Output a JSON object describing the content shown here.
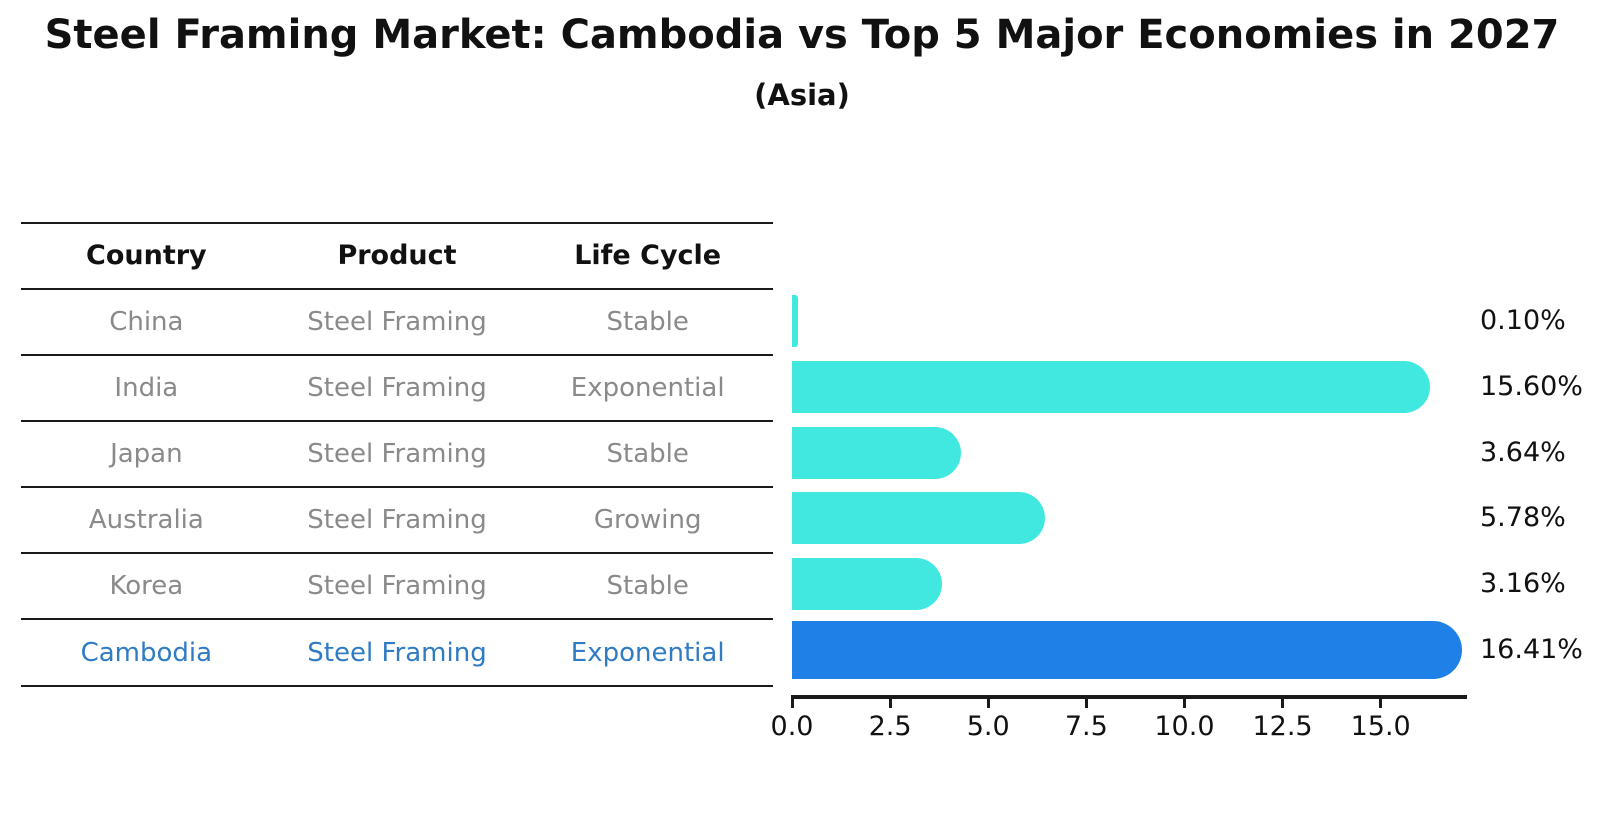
{
  "title": "Steel Framing Market: Cambodia vs Top 5 Major Economies in 2027",
  "subtitle": "(Asia)",
  "colors": {
    "bar": "#40E8DF",
    "highlight_bar": "#1F80E8",
    "highlight_text": "#2F7BC4",
    "cell_text": "#8A8A8A",
    "header_text": "#111111",
    "line": "#1A1A1A"
  },
  "table": {
    "headers": [
      "Country",
      "Product",
      "Life Cycle"
    ],
    "rows": [
      {
        "country": "China",
        "product": "Steel Framing",
        "life_cycle": "Stable",
        "highlight": false
      },
      {
        "country": "India",
        "product": "Steel Framing",
        "life_cycle": "Exponential",
        "highlight": false
      },
      {
        "country": "Japan",
        "product": "Steel Framing",
        "life_cycle": "Stable",
        "highlight": false
      },
      {
        "country": "Australia",
        "product": "Steel Framing",
        "life_cycle": "Growing",
        "highlight": false
      },
      {
        "country": "Korea",
        "product": "Steel Framing",
        "life_cycle": "Stable",
        "highlight": false
      },
      {
        "country": "Cambodia",
        "product": "Steel Framing",
        "life_cycle": "Exponential",
        "highlight": true
      }
    ]
  },
  "chart_data": {
    "type": "bar",
    "orientation": "horizontal",
    "title": "Steel Framing Market: Cambodia vs Top 5 Major Economies in 2027",
    "subtitle": "(Asia)",
    "categories": [
      "China",
      "India",
      "Japan",
      "Australia",
      "Korea",
      "Cambodia"
    ],
    "values": [
      0.1,
      15.6,
      3.64,
      5.78,
      3.16,
      16.41
    ],
    "value_labels": [
      "0.10%",
      "15.60%",
      "3.64%",
      "5.78%",
      "3.16%",
      "16.41%"
    ],
    "highlight_index": 5,
    "highlight_category": "Cambodia",
    "xlim": [
      0,
      17.2
    ],
    "xticks": [
      0.0,
      2.5,
      5.0,
      7.5,
      10.0,
      12.5,
      15.0
    ],
    "xtick_labels": [
      "0.0",
      "2.5",
      "5.0",
      "7.5",
      "10.0",
      "12.5",
      "15.0"
    ],
    "xlabel": "",
    "ylabel": "",
    "grid": false,
    "legend": false
  }
}
